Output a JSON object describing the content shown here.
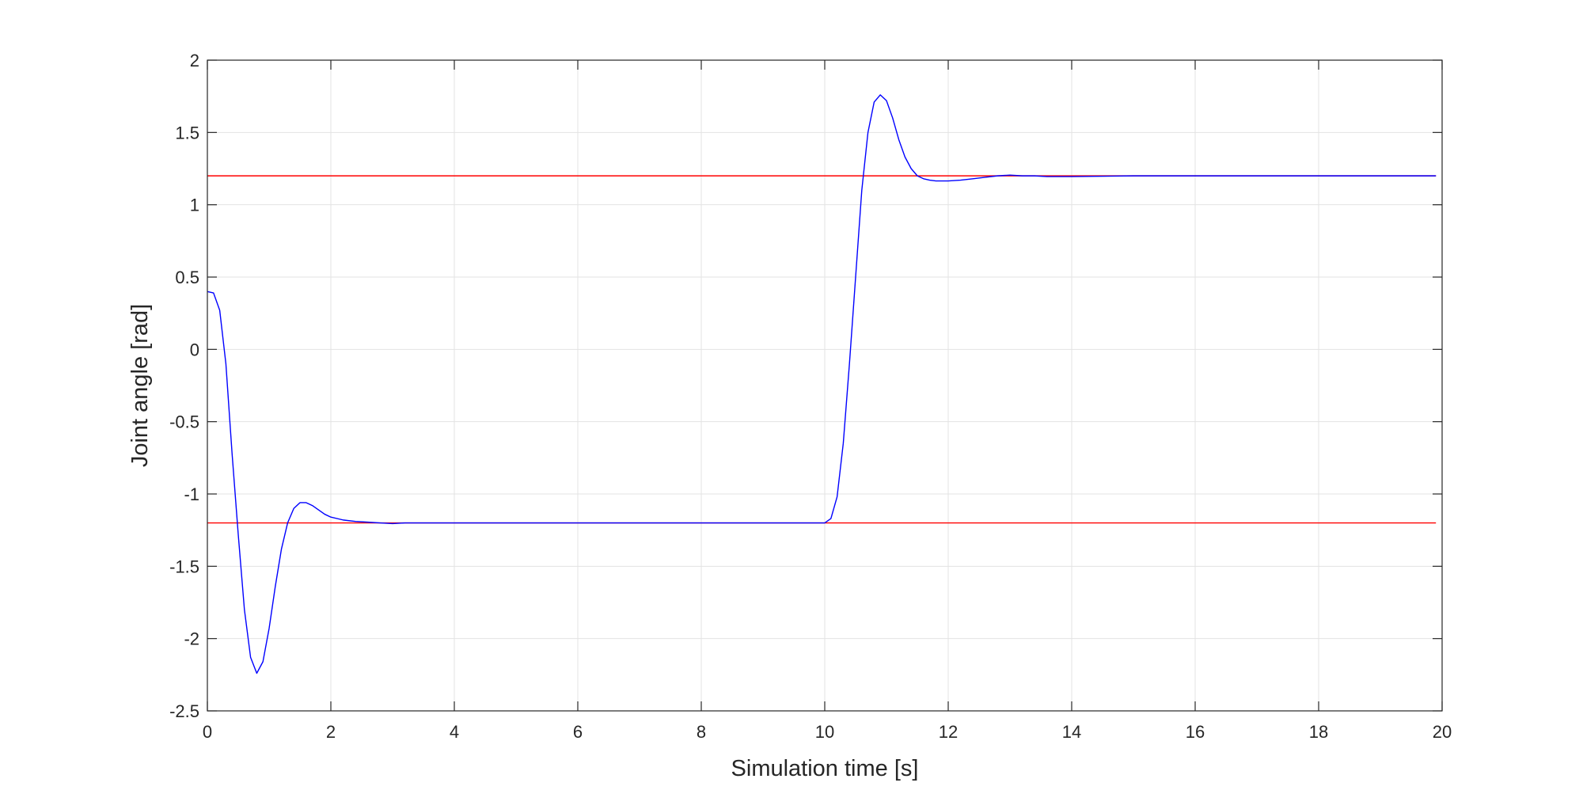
{
  "chart_data": {
    "type": "line",
    "title": "",
    "xlabel": "Simulation time [s]",
    "ylabel": "Joint angle [rad]",
    "xlim": [
      0,
      20
    ],
    "ylim": [
      -2.5,
      2
    ],
    "xticks": [
      0,
      2,
      4,
      6,
      8,
      10,
      12,
      14,
      16,
      18,
      20
    ],
    "yticks": [
      -2.5,
      -2,
      -1.5,
      -1,
      -0.5,
      0,
      0.5,
      1,
      1.5,
      2
    ],
    "xtick_labels": [
      "0",
      "2",
      "4",
      "6",
      "8",
      "10",
      "12",
      "14",
      "16",
      "18",
      "20"
    ],
    "ytick_labels": [
      "-2.5",
      "-2",
      "-1.5",
      "-1",
      "-0.5",
      "0",
      "0.5",
      "1",
      "1.5",
      "2"
    ],
    "grid": true,
    "series": [
      {
        "color": "#ff0000",
        "x": [
          0,
          19.9
        ],
        "y": [
          1.2,
          1.2
        ]
      },
      {
        "color": "#ff0000",
        "x": [
          0,
          19.9
        ],
        "y": [
          -1.2,
          -1.2
        ]
      },
      {
        "color": "#0000ff",
        "x": [
          0,
          0.1,
          0.2,
          0.3,
          0.4,
          0.5,
          0.6,
          0.7,
          0.8,
          0.9,
          1.0,
          1.1,
          1.2,
          1.3,
          1.4,
          1.5,
          1.6,
          1.7,
          1.8,
          1.9,
          2.0,
          2.2,
          2.4,
          2.6,
          2.8,
          3.0,
          3.2,
          3.4,
          3.6,
          4.0,
          5.0,
          6.0,
          7.0,
          8.0,
          9.0,
          9.9,
          10.0,
          10.1,
          10.2,
          10.3,
          10.4,
          10.5,
          10.6,
          10.7,
          10.8,
          10.9,
          11.0,
          11.1,
          11.2,
          11.3,
          11.4,
          11.5,
          11.6,
          11.7,
          11.8,
          12.0,
          12.2,
          12.4,
          12.6,
          12.8,
          13.0,
          13.2,
          13.4,
          13.6,
          14.0,
          15.0,
          16.0,
          17.0,
          18.0,
          19.0,
          19.9
        ],
        "y": [
          0.4,
          0.39,
          0.27,
          -0.1,
          -0.72,
          -1.28,
          -1.8,
          -2.13,
          -2.24,
          -2.16,
          -1.93,
          -1.64,
          -1.38,
          -1.2,
          -1.1,
          -1.06,
          -1.06,
          -1.08,
          -1.11,
          -1.14,
          -1.16,
          -1.18,
          -1.19,
          -1.195,
          -1.2,
          -1.205,
          -1.2,
          -1.2,
          -1.2,
          -1.2,
          -1.2,
          -1.2,
          -1.2,
          -1.2,
          -1.2,
          -1.2,
          -1.2,
          -1.17,
          -1.02,
          -0.65,
          -0.1,
          0.5,
          1.1,
          1.5,
          1.71,
          1.76,
          1.72,
          1.6,
          1.45,
          1.33,
          1.25,
          1.2,
          1.18,
          1.17,
          1.165,
          1.165,
          1.17,
          1.18,
          1.19,
          1.2,
          1.205,
          1.2,
          1.2,
          1.195,
          1.195,
          1.2,
          1.2,
          1.2,
          1.2,
          1.2,
          1.2
        ]
      }
    ]
  }
}
